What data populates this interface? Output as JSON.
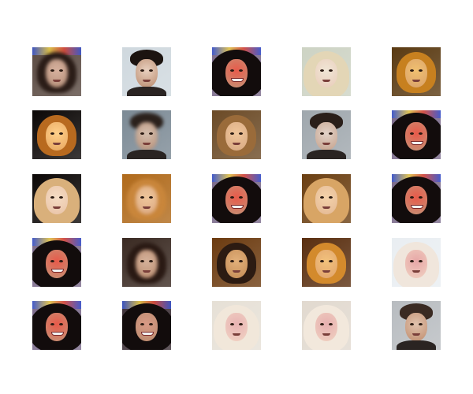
{
  "grid": {
    "rows": 5,
    "cols": 5,
    "tiles": [
      {
        "variant": "dark-messy",
        "palette": {
          "bg": "#5a4a42",
          "hair": "#2b1d18",
          "face": "#b08a74",
          "accent": "#d8b3a0"
        }
      },
      {
        "variant": "dark-male",
        "palette": {
          "bg": "#cfd8de",
          "hair": "#1c1410",
          "face": "#b98a6d",
          "accent": "#e8d0bf"
        }
      },
      {
        "variant": "bigcurl-smile",
        "palette": {
          "bg": "#7a6a8a",
          "hair": "#120c0c",
          "face": "#c49478",
          "accent": "#e85a4a"
        }
      },
      {
        "variant": "blonde-light",
        "palette": {
          "bg": "#cdd3c4",
          "hair": "#e3d6b6",
          "face": "#e9cbb9",
          "accent": "#f0e6d6"
        }
      },
      {
        "variant": "orange-warm",
        "palette": {
          "bg": "#5a3a12",
          "hair": "#c7801f",
          "face": "#d9a06a",
          "accent": "#f0c070"
        }
      },
      {
        "variant": "spotlight-dark",
        "palette": {
          "bg": "#0b0706",
          "hair": "#b86a1f",
          "face": "#e6a55e",
          "accent": "#ffd08a"
        }
      },
      {
        "variant": "grey-male-blur",
        "palette": {
          "bg": "#7c8a95",
          "hair": "#2b211c",
          "face": "#b58b72",
          "accent": "#d5c0b0"
        }
      },
      {
        "variant": "brown-warm",
        "palette": {
          "bg": "#6b4a26",
          "hair": "#9a6b3a",
          "face": "#d7a882",
          "accent": "#f0c59a"
        }
      },
      {
        "variant": "grey-male",
        "palette": {
          "bg": "#9fa7ad",
          "hair": "#2a1f1a",
          "face": "#c4a08a",
          "accent": "#e2d2c8"
        }
      },
      {
        "variant": "bigcurl-smile",
        "palette": {
          "bg": "#7a6a8a",
          "hair": "#120c0c",
          "face": "#c49478",
          "accent": "#e85a4a"
        }
      },
      {
        "variant": "blonde-long",
        "palette": {
          "bg": "#0b0706",
          "hair": "#d9b07b",
          "face": "#e8c2a6",
          "accent": "#f5dcc4"
        }
      },
      {
        "variant": "ginger-blur",
        "palette": {
          "bg": "#b06a1b",
          "hair": "#c9863b",
          "face": "#d9a57f",
          "accent": "#efc79c"
        }
      },
      {
        "variant": "bigcurl-smile",
        "palette": {
          "bg": "#7a6a8a",
          "hair": "#120c0c",
          "face": "#c49478",
          "accent": "#e85a4a"
        }
      },
      {
        "variant": "amber-blonde",
        "palette": {
          "bg": "#6b3f12",
          "hair": "#d8a565",
          "face": "#e3b894",
          "accent": "#f4d2aa"
        }
      },
      {
        "variant": "bigcurl-smile",
        "palette": {
          "bg": "#7a6a8a",
          "hair": "#120c0c",
          "face": "#c49478",
          "accent": "#e85a4a"
        }
      },
      {
        "variant": "bigcurl-smile",
        "palette": {
          "bg": "#7a6a8a",
          "hair": "#120c0c",
          "face": "#c49478",
          "accent": "#e85a4a"
        }
      },
      {
        "variant": "dark-blur",
        "palette": {
          "bg": "#3a2a22",
          "hair": "#2a1a14",
          "face": "#b7886b",
          "accent": "#d6b39c"
        }
      },
      {
        "variant": "amber-dark",
        "palette": {
          "bg": "#6c3b10",
          "hair": "#2c1b12",
          "face": "#c38b55",
          "accent": "#e2b07a"
        }
      },
      {
        "variant": "orange-warm",
        "palette": {
          "bg": "#5a2f10",
          "hair": "#d38a2c",
          "face": "#e0a26c",
          "accent": "#f2c27c"
        }
      },
      {
        "variant": "white-bright",
        "palette": {
          "bg": "#e9eef2",
          "hair": "#f0e6dc",
          "face": "#f0d2c2",
          "accent": "#e7a7a7"
        }
      },
      {
        "variant": "bigcurl-smile",
        "palette": {
          "bg": "#7a6a8a",
          "hair": "#120c0c",
          "face": "#c49478",
          "accent": "#e85a4a"
        }
      },
      {
        "variant": "bigcurl-dark",
        "palette": {
          "bg": "#3c2f36",
          "hair": "#120c0c",
          "face": "#b98a6d",
          "accent": "#d89a86"
        }
      },
      {
        "variant": "white-bright",
        "palette": {
          "bg": "#e6e0d6",
          "hair": "#f1e7da",
          "face": "#f1d4c4",
          "accent": "#e8b3b3"
        }
      },
      {
        "variant": "white-bright",
        "palette": {
          "bg": "#e1d9cf",
          "hair": "#f2e8dc",
          "face": "#f0d2c1",
          "accent": "#e7b0b0"
        }
      },
      {
        "variant": "grey-male",
        "palette": {
          "bg": "#b8bcc0",
          "hair": "#3a2a22",
          "face": "#c08c6d",
          "accent": "#e0c2ad"
        }
      }
    ]
  }
}
